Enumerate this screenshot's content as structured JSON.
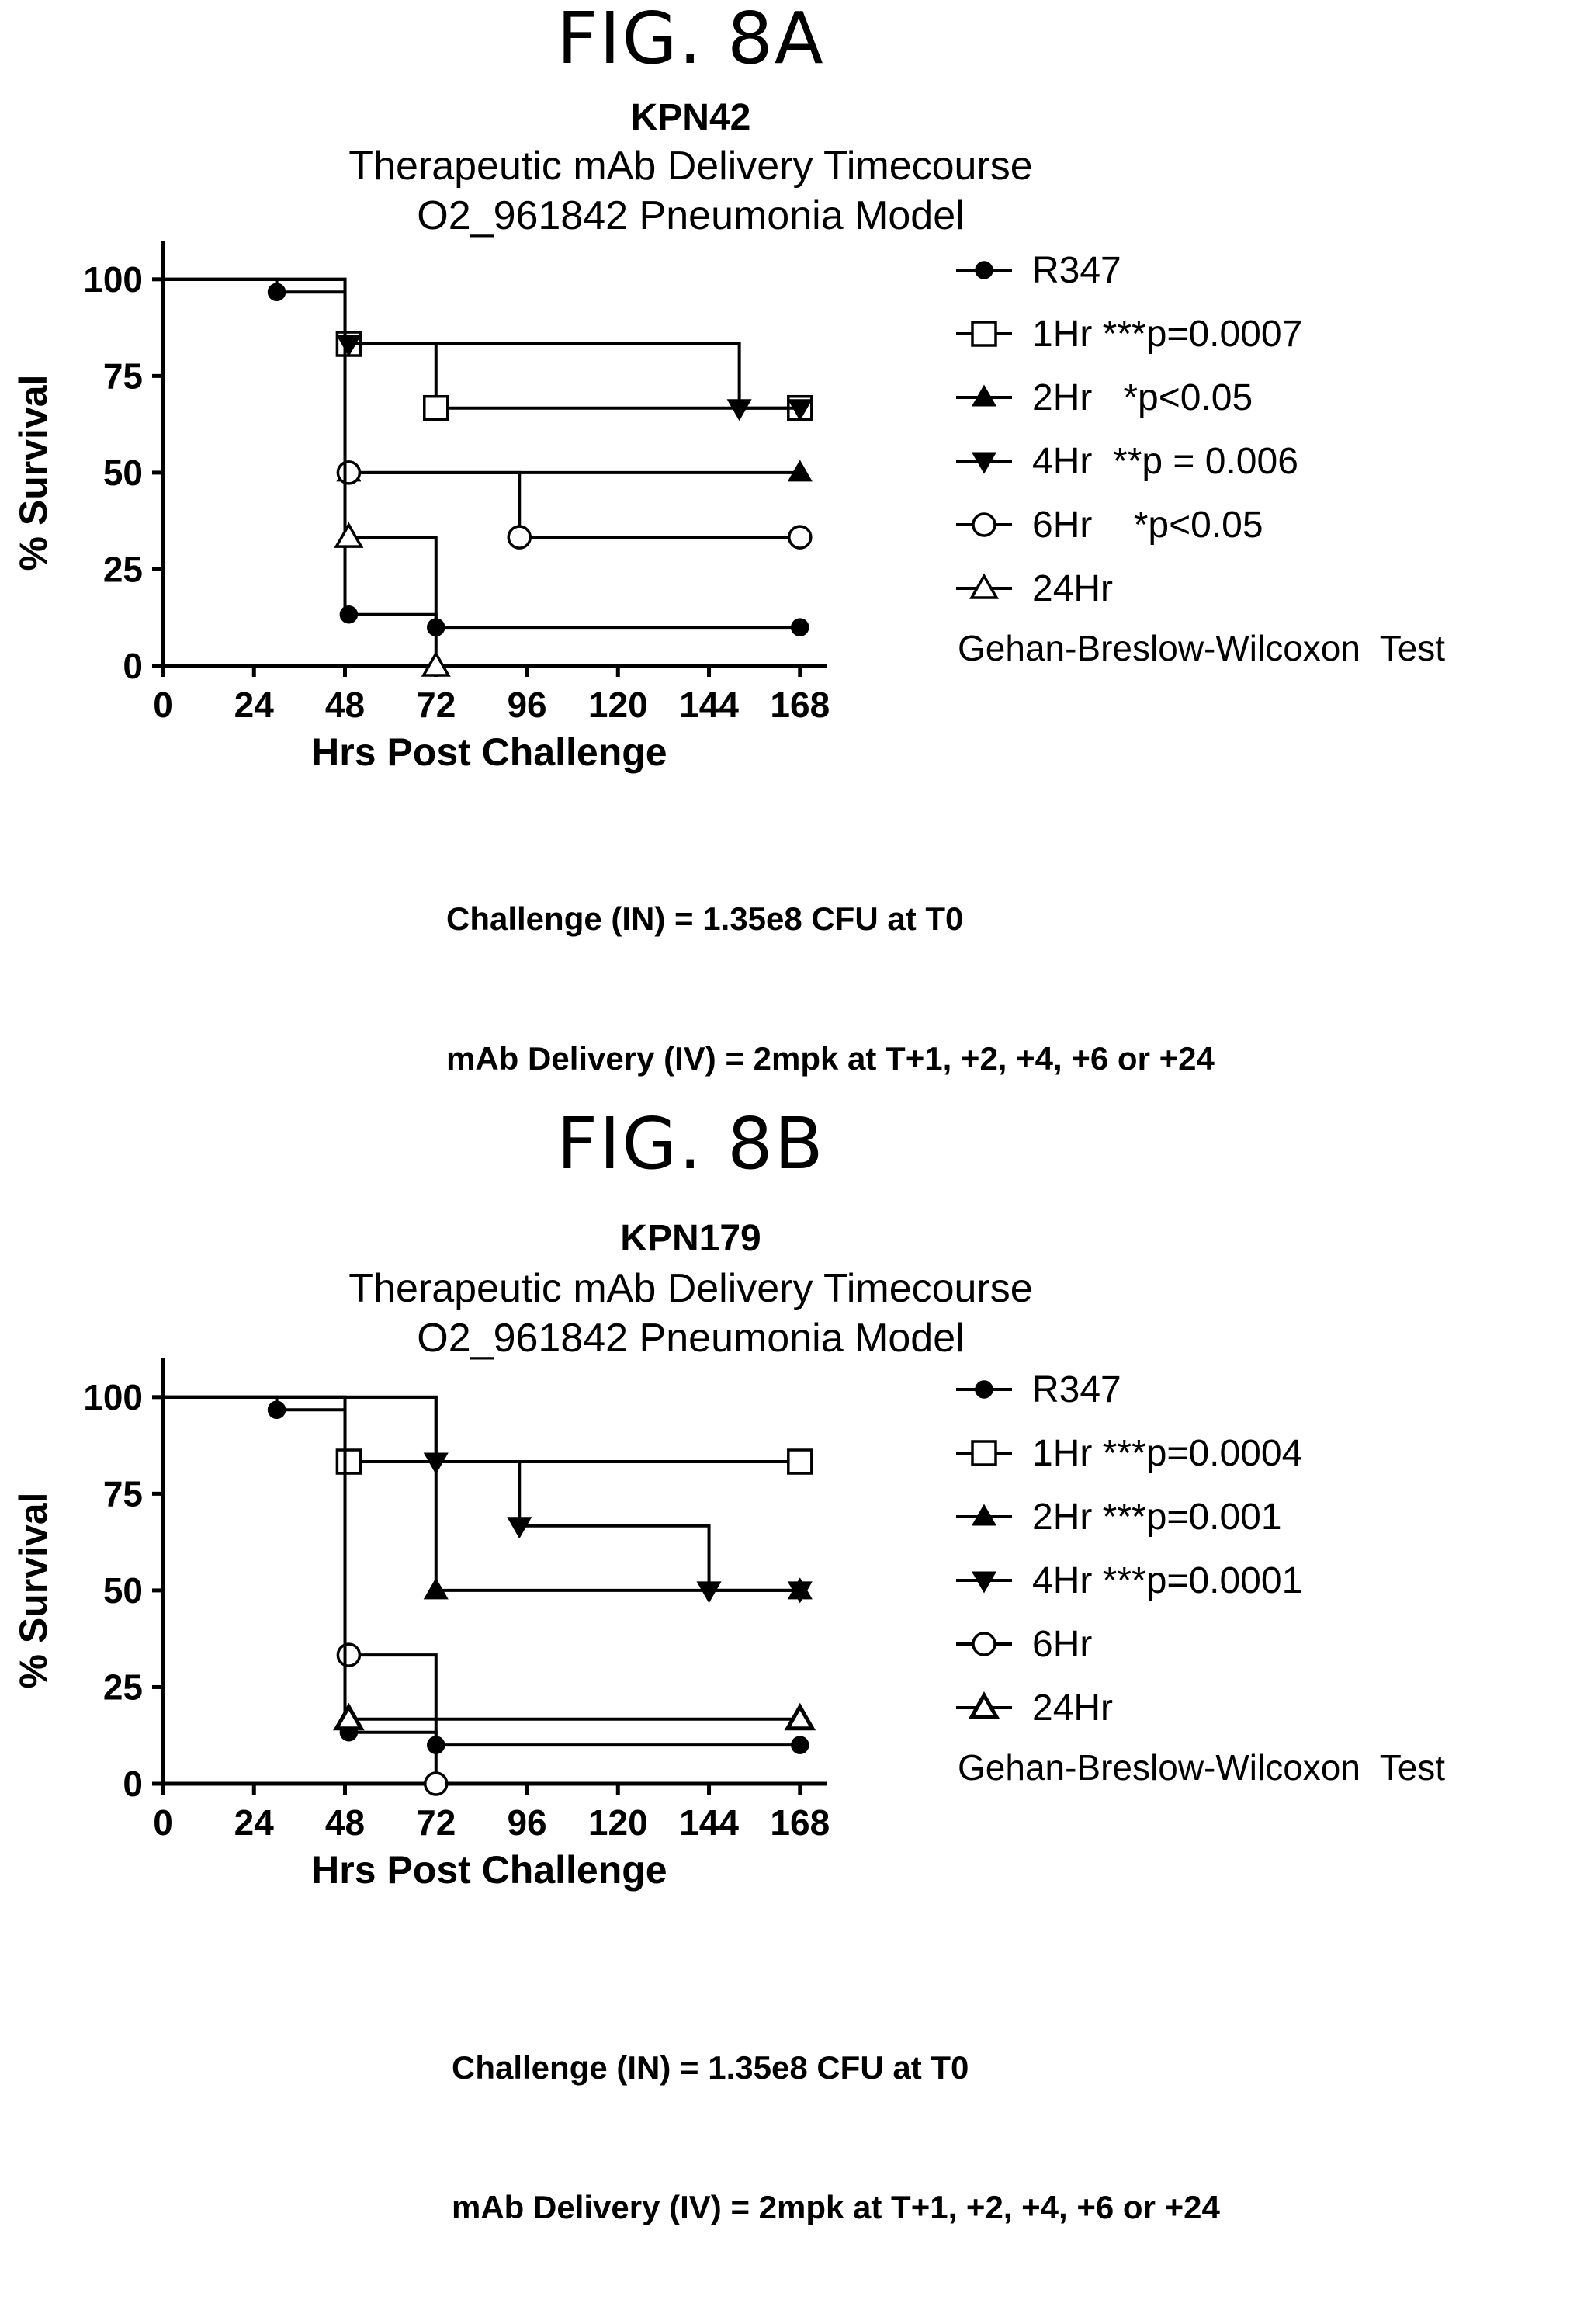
{
  "chart_data": [
    {
      "type": "line",
      "figure_label": "FIG. 8A",
      "title": "KPN42",
      "subtitle": [
        "Therapeutic mAb Delivery Timecourse",
        "O2_961842 Pneumonia Model"
      ],
      "xlabel": "Hrs Post Challenge",
      "ylabel": "% Survival",
      "xlim": [
        0,
        175
      ],
      "ylim": [
        0,
        110
      ],
      "xticks": [
        0,
        24,
        48,
        72,
        96,
        120,
        144,
        168
      ],
      "yticks": [
        0,
        25,
        50,
        75,
        100
      ],
      "grid": false,
      "legend_position": "right",
      "legend_note": "Gehan-Breslow-Wilcoxon  Test",
      "series": [
        {
          "name": "R347",
          "marker": "circle-filled",
          "steps": [
            [
              0,
              100
            ],
            [
              30,
              96.7
            ],
            [
              48,
              13.3
            ],
            [
              72,
              10
            ],
            [
              168,
              10
            ]
          ],
          "markers": [
            [
              30,
              96.7
            ],
            [
              49,
              13.3
            ],
            [
              72,
              10
            ],
            [
              168,
              10
            ]
          ]
        },
        {
          "name": "1Hr ***p=0.0007",
          "marker": "square-open",
          "steps": [
            [
              0,
              100
            ],
            [
              48,
              83.3
            ],
            [
              72,
              66.7
            ],
            [
              168,
              66.7
            ]
          ],
          "markers": [
            [
              49,
              83.3
            ],
            [
              72,
              66.7
            ],
            [
              168,
              66.7
            ]
          ]
        },
        {
          "name": "2Hr   *p<0.05",
          "marker": "triangle-up-filled",
          "steps": [
            [
              0,
              100
            ],
            [
              48,
              50
            ],
            [
              168,
              50
            ]
          ],
          "markers": [
            [
              49,
              50
            ],
            [
              168,
              50
            ]
          ]
        },
        {
          "name": "4Hr  **p = 0.006",
          "marker": "triangle-down-filled",
          "steps": [
            [
              0,
              100
            ],
            [
              48,
              83.3
            ],
            [
              152,
              66.7
            ],
            [
              168,
              66.7
            ]
          ],
          "markers": [
            [
              49,
              83.3
            ],
            [
              152,
              66.7
            ],
            [
              168,
              66.7
            ]
          ]
        },
        {
          "name": "6Hr    *p<0.05",
          "marker": "circle-open",
          "steps": [
            [
              0,
              100
            ],
            [
              48,
              50
            ],
            [
              94,
              33.3
            ],
            [
              168,
              33.3
            ]
          ],
          "markers": [
            [
              49,
              50
            ],
            [
              94,
              33.3
            ],
            [
              168,
              33.3
            ]
          ]
        },
        {
          "name": "24Hr",
          "marker": "triangle-up-open",
          "steps": [
            [
              0,
              100
            ],
            [
              48,
              33.3
            ],
            [
              72,
              0
            ]
          ],
          "markers": [
            [
              49,
              33.3
            ],
            [
              72,
              0
            ]
          ]
        }
      ],
      "footnote": [
        "Challenge (IN) = 1.35e8 CFU at T0",
        "mAb Delivery (IV) = 2mpk at T+1, +2, +4, +6 or +24"
      ]
    },
    {
      "type": "line",
      "figure_label": "FIG. 8B",
      "title": "KPN179",
      "subtitle": [
        "Therapeutic mAb Delivery Timecourse",
        "O2_961842 Pneumonia Model"
      ],
      "xlabel": "Hrs Post Challenge",
      "ylabel": "% Survival",
      "xlim": [
        0,
        175
      ],
      "ylim": [
        0,
        110
      ],
      "xticks": [
        0,
        24,
        48,
        72,
        96,
        120,
        144,
        168
      ],
      "yticks": [
        0,
        25,
        50,
        75,
        100
      ],
      "grid": false,
      "legend_position": "right",
      "legend_note": "Gehan-Breslow-Wilcoxon  Test",
      "series": [
        {
          "name": "R347",
          "marker": "circle-filled",
          "steps": [
            [
              0,
              100
            ],
            [
              30,
              96.7
            ],
            [
              48,
              13.3
            ],
            [
              72,
              10
            ],
            [
              168,
              10
            ]
          ],
          "markers": [
            [
              30,
              96.7
            ],
            [
              49,
              13.3
            ],
            [
              72,
              10
            ],
            [
              168,
              10
            ]
          ]
        },
        {
          "name": "1Hr ***p=0.0004",
          "marker": "square-open",
          "steps": [
            [
              0,
              100
            ],
            [
              48,
              83.3
            ],
            [
              168,
              83.3
            ]
          ],
          "markers": [
            [
              49,
              83.3
            ],
            [
              168,
              83.3
            ]
          ]
        },
        {
          "name": "2Hr ***p=0.001",
          "marker": "triangle-up-filled",
          "steps": [
            [
              0,
              100
            ],
            [
              72,
              50
            ],
            [
              168,
              50
            ]
          ],
          "markers": [
            [
              72,
              50
            ],
            [
              168,
              50
            ]
          ]
        },
        {
          "name": "4Hr ***p=0.0001",
          "marker": "triangle-down-filled",
          "steps": [
            [
              0,
              100
            ],
            [
              72,
              83.3
            ],
            [
              94,
              66.7
            ],
            [
              144,
              50
            ],
            [
              168,
              50
            ]
          ],
          "markers": [
            [
              72,
              83.3
            ],
            [
              94,
              66.7
            ],
            [
              144,
              50
            ],
            [
              168,
              50
            ]
          ]
        },
        {
          "name": "6Hr",
          "marker": "circle-open",
          "steps": [
            [
              0,
              100
            ],
            [
              48,
              33.3
            ],
            [
              72,
              0
            ]
          ],
          "markers": [
            [
              49,
              33.3
            ],
            [
              72,
              0
            ]
          ]
        },
        {
          "name": "24Hr",
          "marker": "triangle-up-open-bold",
          "steps": [
            [
              0,
              100
            ],
            [
              48,
              16.7
            ],
            [
              168,
              16.7
            ]
          ],
          "markers": [
            [
              49,
              16.7
            ],
            [
              168,
              16.7
            ]
          ]
        }
      ],
      "footnote": [
        "Challenge (IN) = 1.35e8 CFU at T0",
        "mAb Delivery (IV) = 2mpk at T+1, +2, +4, +6 or +24"
      ]
    }
  ]
}
